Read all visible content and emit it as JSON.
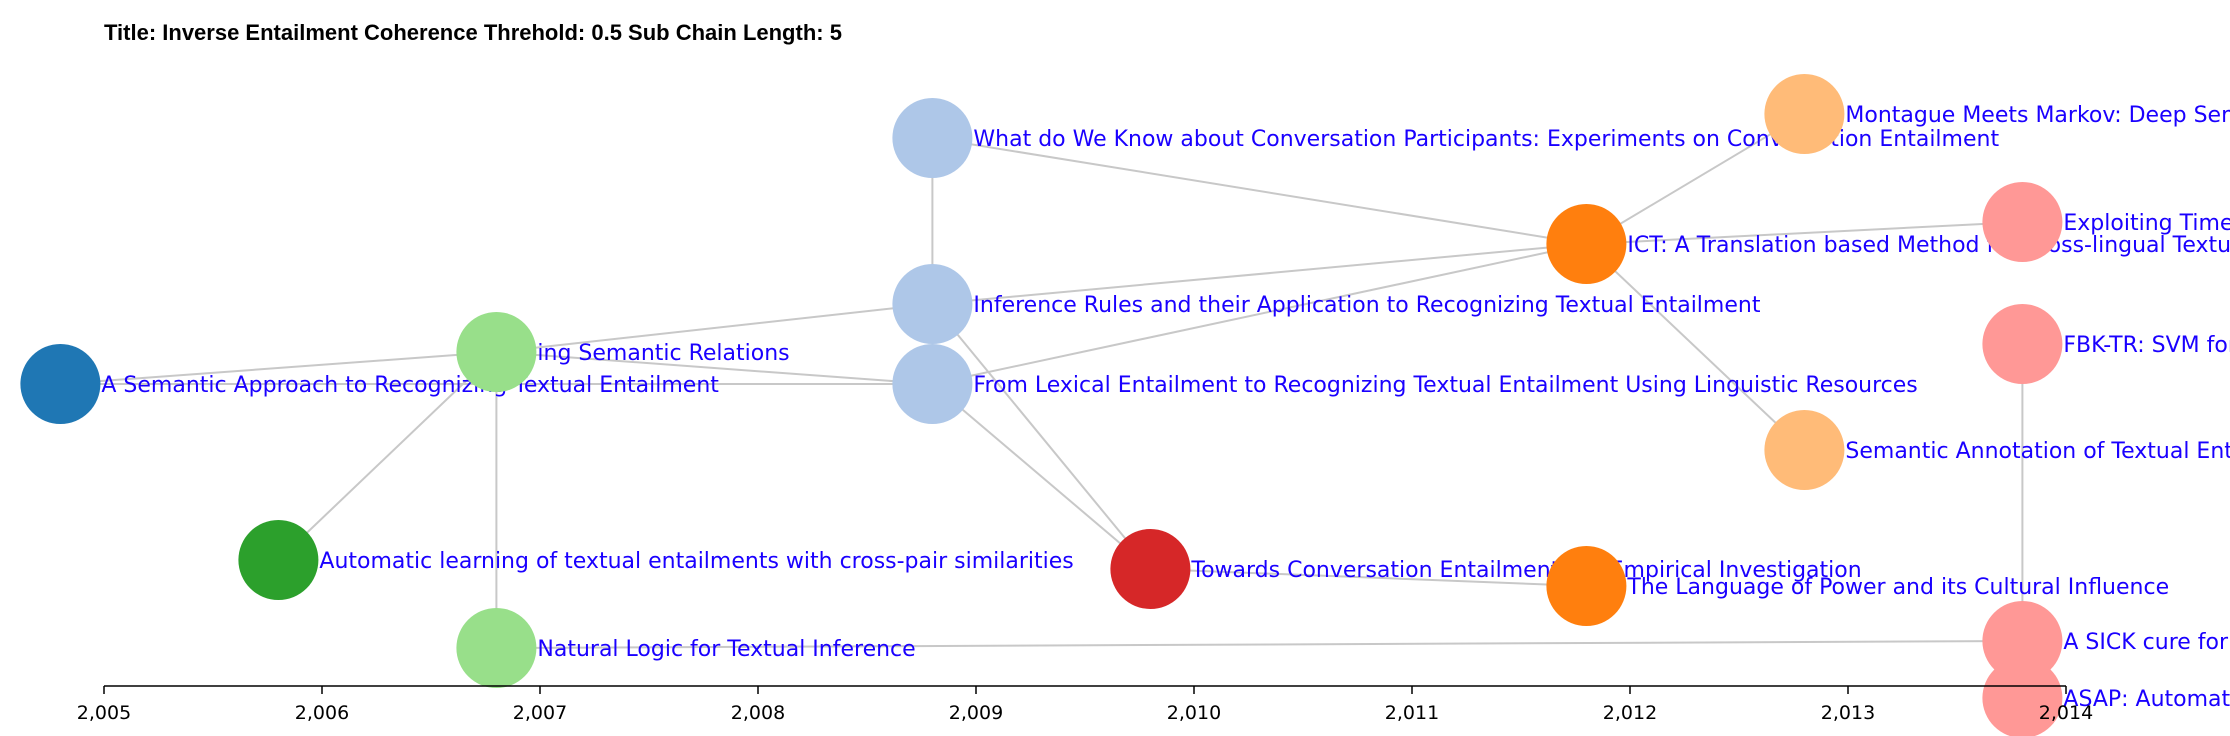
{
  "title": "Title: Inverse Entailment Coherence Threhold: 0.5 Sub Chain Length: 5",
  "axis": {
    "type": "linear",
    "domain": [
      2005,
      2014
    ],
    "ticks": [
      "2,005",
      "2,006",
      "2,007",
      "2,008",
      "2,009",
      "2,010",
      "2,011",
      "2,012",
      "2,013",
      "2,014"
    ]
  },
  "nodes": [
    {
      "id": "n1",
      "year": 2004.8,
      "label": "A Semantic Approach to Recognizing Textual Entailment",
      "color": "#1f77b4"
    },
    {
      "id": "n2",
      "year": 2005.8,
      "label": "Automatic learning of textual entailments with cross-pair similarities",
      "color": "#2ca02c"
    },
    {
      "id": "n3",
      "year": 2006.8,
      "label": "ing Semantic Relations",
      "color": "#98df8a"
    },
    {
      "id": "n4",
      "year": 2006.8,
      "label": "Natural Logic for Textual Inference",
      "color": "#98df8a"
    },
    {
      "id": "n5",
      "year": 2008.8,
      "label": "What do We Know about Conversation Participants: Experiments on Conversation Entailment",
      "color": "#aec7e8"
    },
    {
      "id": "n6",
      "year": 2008.8,
      "label": "Inference Rules and their Application to Recognizing Textual Entailment",
      "color": "#aec7e8"
    },
    {
      "id": "n7",
      "year": 2008.8,
      "label": "From Lexical Entailment to Recognizing Textual Entailment Using Linguistic Resources",
      "color": "#aec7e8"
    },
    {
      "id": "n8",
      "year": 2009.8,
      "label": "Towards Conversation Entailment: An Empirical Investigation",
      "color": "#d62728"
    },
    {
      "id": "n9",
      "year": 2011.8,
      "label": "ICT: A Translation based Method for Cross-lingual Textual Entailment",
      "color": "#ff7f0e"
    },
    {
      "id": "n10",
      "year": 2011.8,
      "label": "The Language of Power and its Cultural Influence",
      "color": "#ff7f0e"
    },
    {
      "id": "n11",
      "year": 2012.8,
      "label": "Montague Meets Markov: Deep Semantics with Probabilistic Logical Form",
      "color": "#ffbb78"
    },
    {
      "id": "n12",
      "year": 2012.8,
      "label": "Semantic Annotation of Textual Entailment",
      "color": "#ffbb78"
    },
    {
      "id": "n13",
      "year": 2013.8,
      "label": "Exploiting Timelines to Enhance Multi-document Summarization",
      "color": "#ff9896"
    },
    {
      "id": "n14",
      "year": 2013.8,
      "label": "FBK-TR: SVM for Semantic Relatedness and Corpus Patterns for RTE",
      "color": "#ff9896"
    },
    {
      "id": "n15",
      "year": 2013.8,
      "label": "A SICK cure for the evaluation of compositional distributional semantic models",
      "color": "#ff9896"
    },
    {
      "id": "n16",
      "year": 2013.8,
      "label": "ASAP: Automatic Semantic Alignment for Phrases",
      "color": "#ff9896"
    }
  ],
  "edges": [
    [
      "n1",
      "n3"
    ],
    [
      "n3",
      "n2"
    ],
    [
      "n3",
      "n4"
    ],
    [
      "n3",
      "n6"
    ],
    [
      "n3",
      "n7"
    ],
    [
      "n1",
      "n7"
    ],
    [
      "n5",
      "n6"
    ],
    [
      "n5",
      "n9"
    ],
    [
      "n6",
      "n9"
    ],
    [
      "n7",
      "n9"
    ],
    [
      "n6",
      "n8"
    ],
    [
      "n7",
      "n8"
    ],
    [
      "n8",
      "n10"
    ],
    [
      "n4",
      "n15"
    ],
    [
      "n9",
      "n11"
    ],
    [
      "n9",
      "n12"
    ],
    [
      "n9",
      "n13"
    ],
    [
      "n14",
      "n15"
    ]
  ]
}
